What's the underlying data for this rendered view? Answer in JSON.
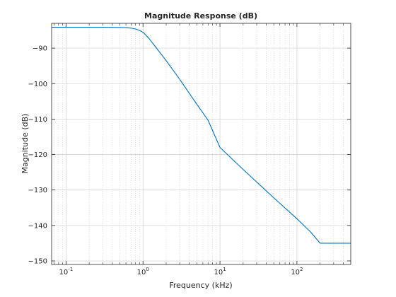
{
  "chart_data": {
    "type": "line",
    "title": "Magnitude Response (dB)",
    "xlabel": "Frequency (kHz)",
    "ylabel": "Magnitude (dB)",
    "x_scale": "log",
    "xlim": [
      0.065,
      500
    ],
    "ylim": [
      -151,
      -83
    ],
    "grid": true,
    "x_ticks": [
      {
        "value": 0.1,
        "base": "10",
        "exp": "-1"
      },
      {
        "value": 1,
        "base": "10",
        "exp": "0"
      },
      {
        "value": 10,
        "base": "10",
        "exp": "1"
      },
      {
        "value": 100,
        "base": "10",
        "exp": "2"
      }
    ],
    "y_ticks": [
      -90,
      -100,
      -110,
      -120,
      -130,
      -140,
      -150
    ],
    "series": [
      {
        "color": "#0072bd",
        "x": [
          0.065,
          0.1,
          0.2,
          0.3,
          0.5,
          0.6,
          0.7,
          0.8,
          0.9,
          1.0,
          1.2,
          1.5,
          2,
          3,
          5,
          7,
          10,
          20,
          50,
          100,
          150,
          200,
          500
        ],
        "y": [
          -84.1,
          -84.1,
          -84.1,
          -84.1,
          -84.15,
          -84.2,
          -84.35,
          -84.6,
          -85.0,
          -85.5,
          -87.3,
          -90.0,
          -93.5,
          -98.8,
          -105.8,
          -110.3,
          -118.0,
          -124.2,
          -132.2,
          -138.1,
          -141.8,
          -145.0,
          -145.0
        ]
      }
    ]
  }
}
